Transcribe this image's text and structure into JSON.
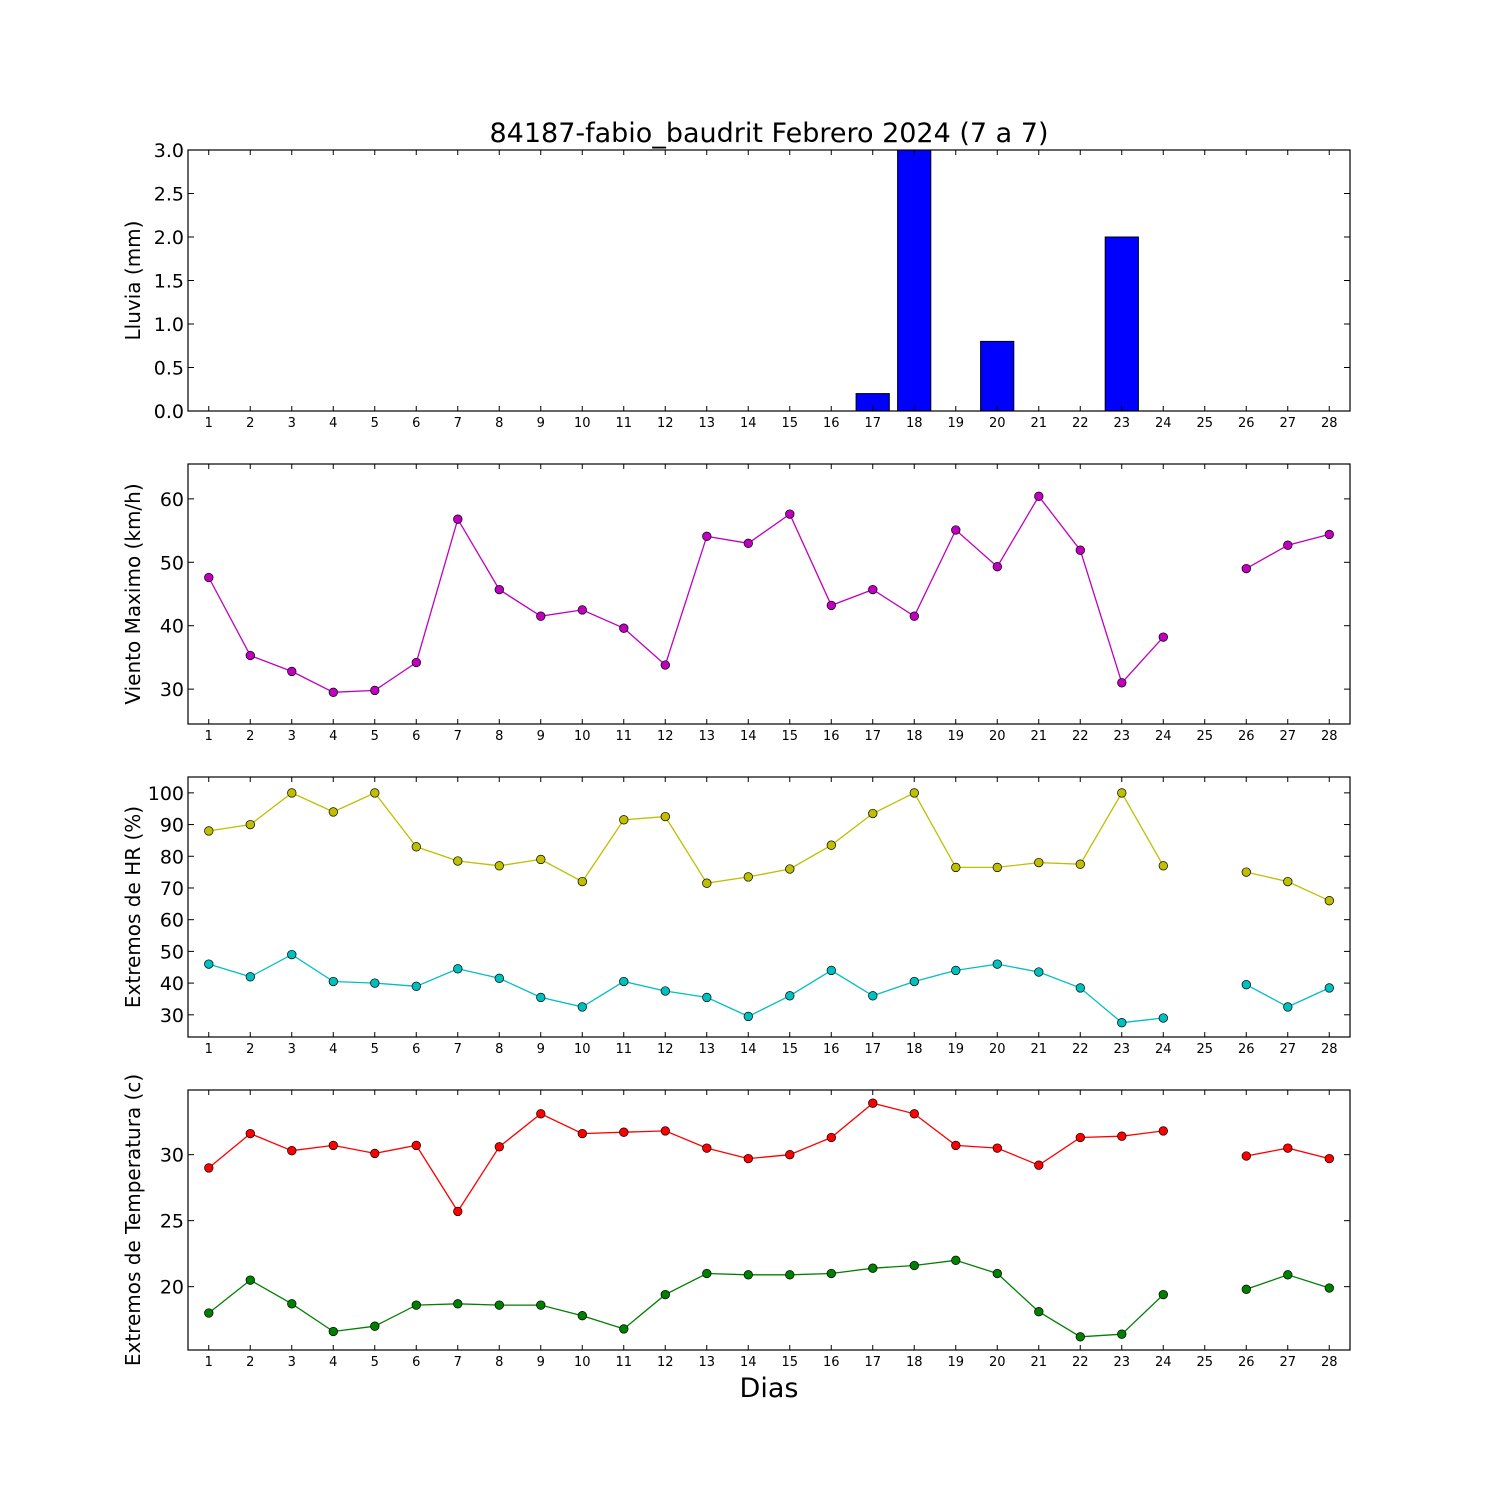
{
  "title": "84187-fabio_baudrit Febrero 2024  (7 a 7)",
  "xlabel": "Dias",
  "colors": {
    "rain": "#0000ff",
    "wind": "#bf00bf",
    "hr_max": "#bfbf00",
    "hr_min": "#00bfbf",
    "temp_max": "#ff0000",
    "temp_min": "#008000"
  },
  "chart_data": [
    {
      "type": "bar",
      "ylabel": "Lluvia (mm)",
      "ylim": [
        0,
        3.0
      ],
      "yticks": [
        0.0,
        0.5,
        1.0,
        1.5,
        2.0,
        2.5,
        3.0
      ],
      "ytick_labels": [
        "0.0",
        "0.5",
        "1.0",
        "1.5",
        "2.0",
        "2.5",
        "3.0"
      ],
      "x": [
        1,
        2,
        3,
        4,
        5,
        6,
        7,
        8,
        9,
        10,
        11,
        12,
        13,
        14,
        15,
        16,
        17,
        18,
        19,
        20,
        21,
        22,
        23,
        24,
        25,
        26,
        27,
        28
      ],
      "series": [
        {
          "color_key": "rain",
          "values": [
            0,
            0,
            0,
            0,
            0,
            0,
            0,
            0,
            0,
            0,
            0,
            0,
            0,
            0,
            0,
            0,
            0.2,
            3.0,
            0,
            0.8,
            0,
            0,
            2.0,
            0,
            0,
            0,
            0,
            0
          ]
        }
      ]
    },
    {
      "type": "line",
      "ylabel": "Viento Maximo (km/h)",
      "ylim": [
        24.5,
        65.5
      ],
      "yticks": [
        30,
        40,
        50,
        60
      ],
      "ytick_labels": [
        "30",
        "40",
        "50",
        "60"
      ],
      "x": [
        1,
        2,
        3,
        4,
        5,
        6,
        7,
        8,
        9,
        10,
        11,
        12,
        13,
        14,
        15,
        16,
        17,
        18,
        19,
        20,
        21,
        22,
        23,
        24,
        25,
        26,
        27,
        28
      ],
      "series": [
        {
          "color_key": "wind",
          "values": [
            47.6,
            35.3,
            32.8,
            29.5,
            29.8,
            34.2,
            56.8,
            45.7,
            41.5,
            42.5,
            39.6,
            33.8,
            54.1,
            53.0,
            57.6,
            43.2,
            45.7,
            41.5,
            55.1,
            49.3,
            60.4,
            51.9,
            31.0,
            38.2,
            null,
            49.0,
            52.7,
            54.4
          ]
        }
      ]
    },
    {
      "type": "line",
      "ylabel": "Extremos de HR (%)",
      "ylim": [
        23,
        105
      ],
      "yticks": [
        30,
        40,
        50,
        60,
        70,
        80,
        90,
        100
      ],
      "ytick_labels": [
        "30",
        "40",
        "50",
        "60",
        "70",
        "80",
        "90",
        "100"
      ],
      "x": [
        1,
        2,
        3,
        4,
        5,
        6,
        7,
        8,
        9,
        10,
        11,
        12,
        13,
        14,
        15,
        16,
        17,
        18,
        19,
        20,
        21,
        22,
        23,
        24,
        25,
        26,
        27,
        28
      ],
      "series": [
        {
          "color_key": "hr_max",
          "values": [
            88,
            90,
            100,
            94,
            100,
            83,
            78.5,
            77,
            79,
            72,
            91.5,
            92.5,
            71.5,
            73.5,
            76,
            83.5,
            93.5,
            100,
            76.5,
            76.5,
            78,
            77.5,
            100,
            77,
            null,
            75,
            72,
            66
          ]
        },
        {
          "color_key": "hr_min",
          "values": [
            46,
            42,
            49,
            40.5,
            40,
            39,
            44.5,
            41.5,
            35.5,
            32.5,
            40.5,
            37.5,
            35.5,
            29.5,
            36,
            44,
            36,
            40.5,
            44,
            46,
            43.5,
            38.5,
            27.5,
            29,
            null,
            39.5,
            32.5,
            38.5
          ]
        }
      ]
    },
    {
      "type": "line",
      "ylabel": "Extremos de Temperatura (c)",
      "ylim": [
        15.2,
        34.9
      ],
      "yticks": [
        20,
        25,
        30
      ],
      "ytick_labels": [
        "20",
        "25",
        "30"
      ],
      "x": [
        1,
        2,
        3,
        4,
        5,
        6,
        7,
        8,
        9,
        10,
        11,
        12,
        13,
        14,
        15,
        16,
        17,
        18,
        19,
        20,
        21,
        22,
        23,
        24,
        25,
        26,
        27,
        28
      ],
      "series": [
        {
          "color_key": "temp_max",
          "values": [
            29.0,
            31.6,
            30.3,
            30.7,
            30.1,
            30.7,
            25.7,
            30.6,
            33.1,
            31.6,
            31.7,
            31.8,
            30.5,
            29.7,
            30.0,
            31.3,
            33.9,
            33.1,
            30.7,
            30.5,
            29.2,
            31.3,
            31.4,
            31.8,
            null,
            29.9,
            30.5,
            29.7
          ]
        },
        {
          "color_key": "temp_min",
          "values": [
            18.0,
            20.5,
            18.7,
            16.6,
            17.0,
            18.6,
            18.7,
            18.6,
            18.6,
            17.8,
            16.8,
            19.4,
            21.0,
            20.9,
            20.9,
            21.0,
            21.4,
            21.6,
            22.0,
            21.0,
            18.1,
            16.2,
            16.4,
            19.4,
            null,
            19.8,
            20.9,
            19.9
          ]
        }
      ]
    }
  ]
}
